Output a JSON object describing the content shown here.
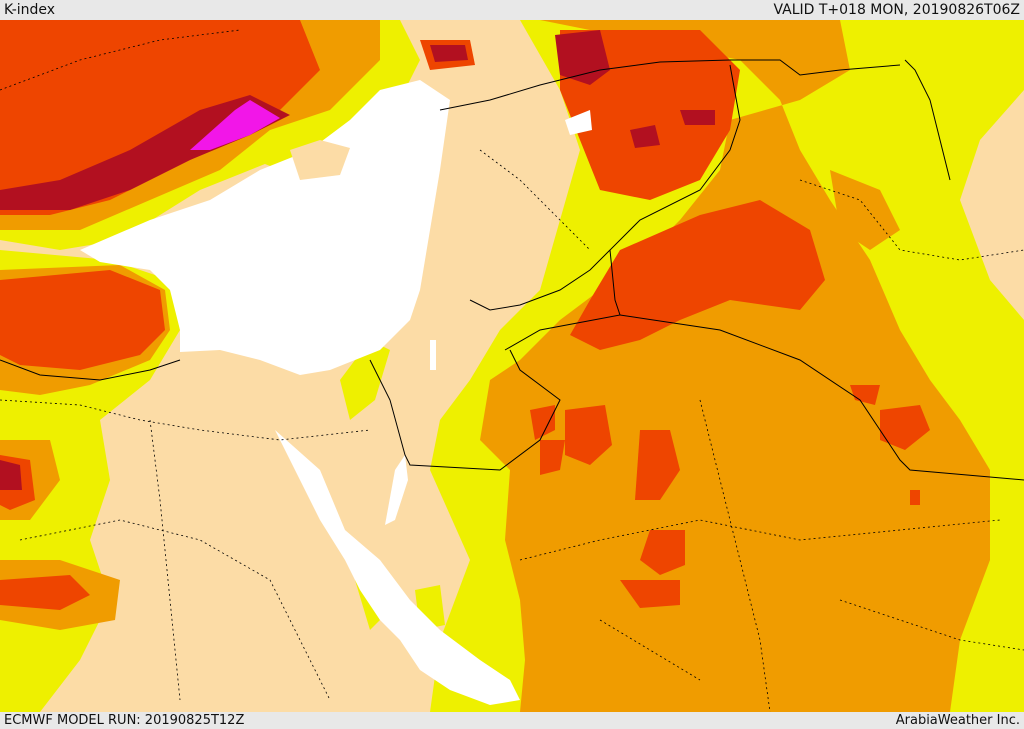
{
  "header": {
    "title": "K-index",
    "valid": "VALID T+018 MON, 20190826T06Z"
  },
  "footer": {
    "model_run": "ECMWF MODEL RUN: 20190825T12Z",
    "credit": "ArabiaWeather Inc."
  },
  "colors": {
    "background": "#fcdca6",
    "sea": "#ffffff",
    "level_1": "#eef000",
    "level_2": "#f09c00",
    "level_3": "#ee4500",
    "level_4": "#b21020",
    "level_5": "#f216e8",
    "borders": "#000000"
  }
}
